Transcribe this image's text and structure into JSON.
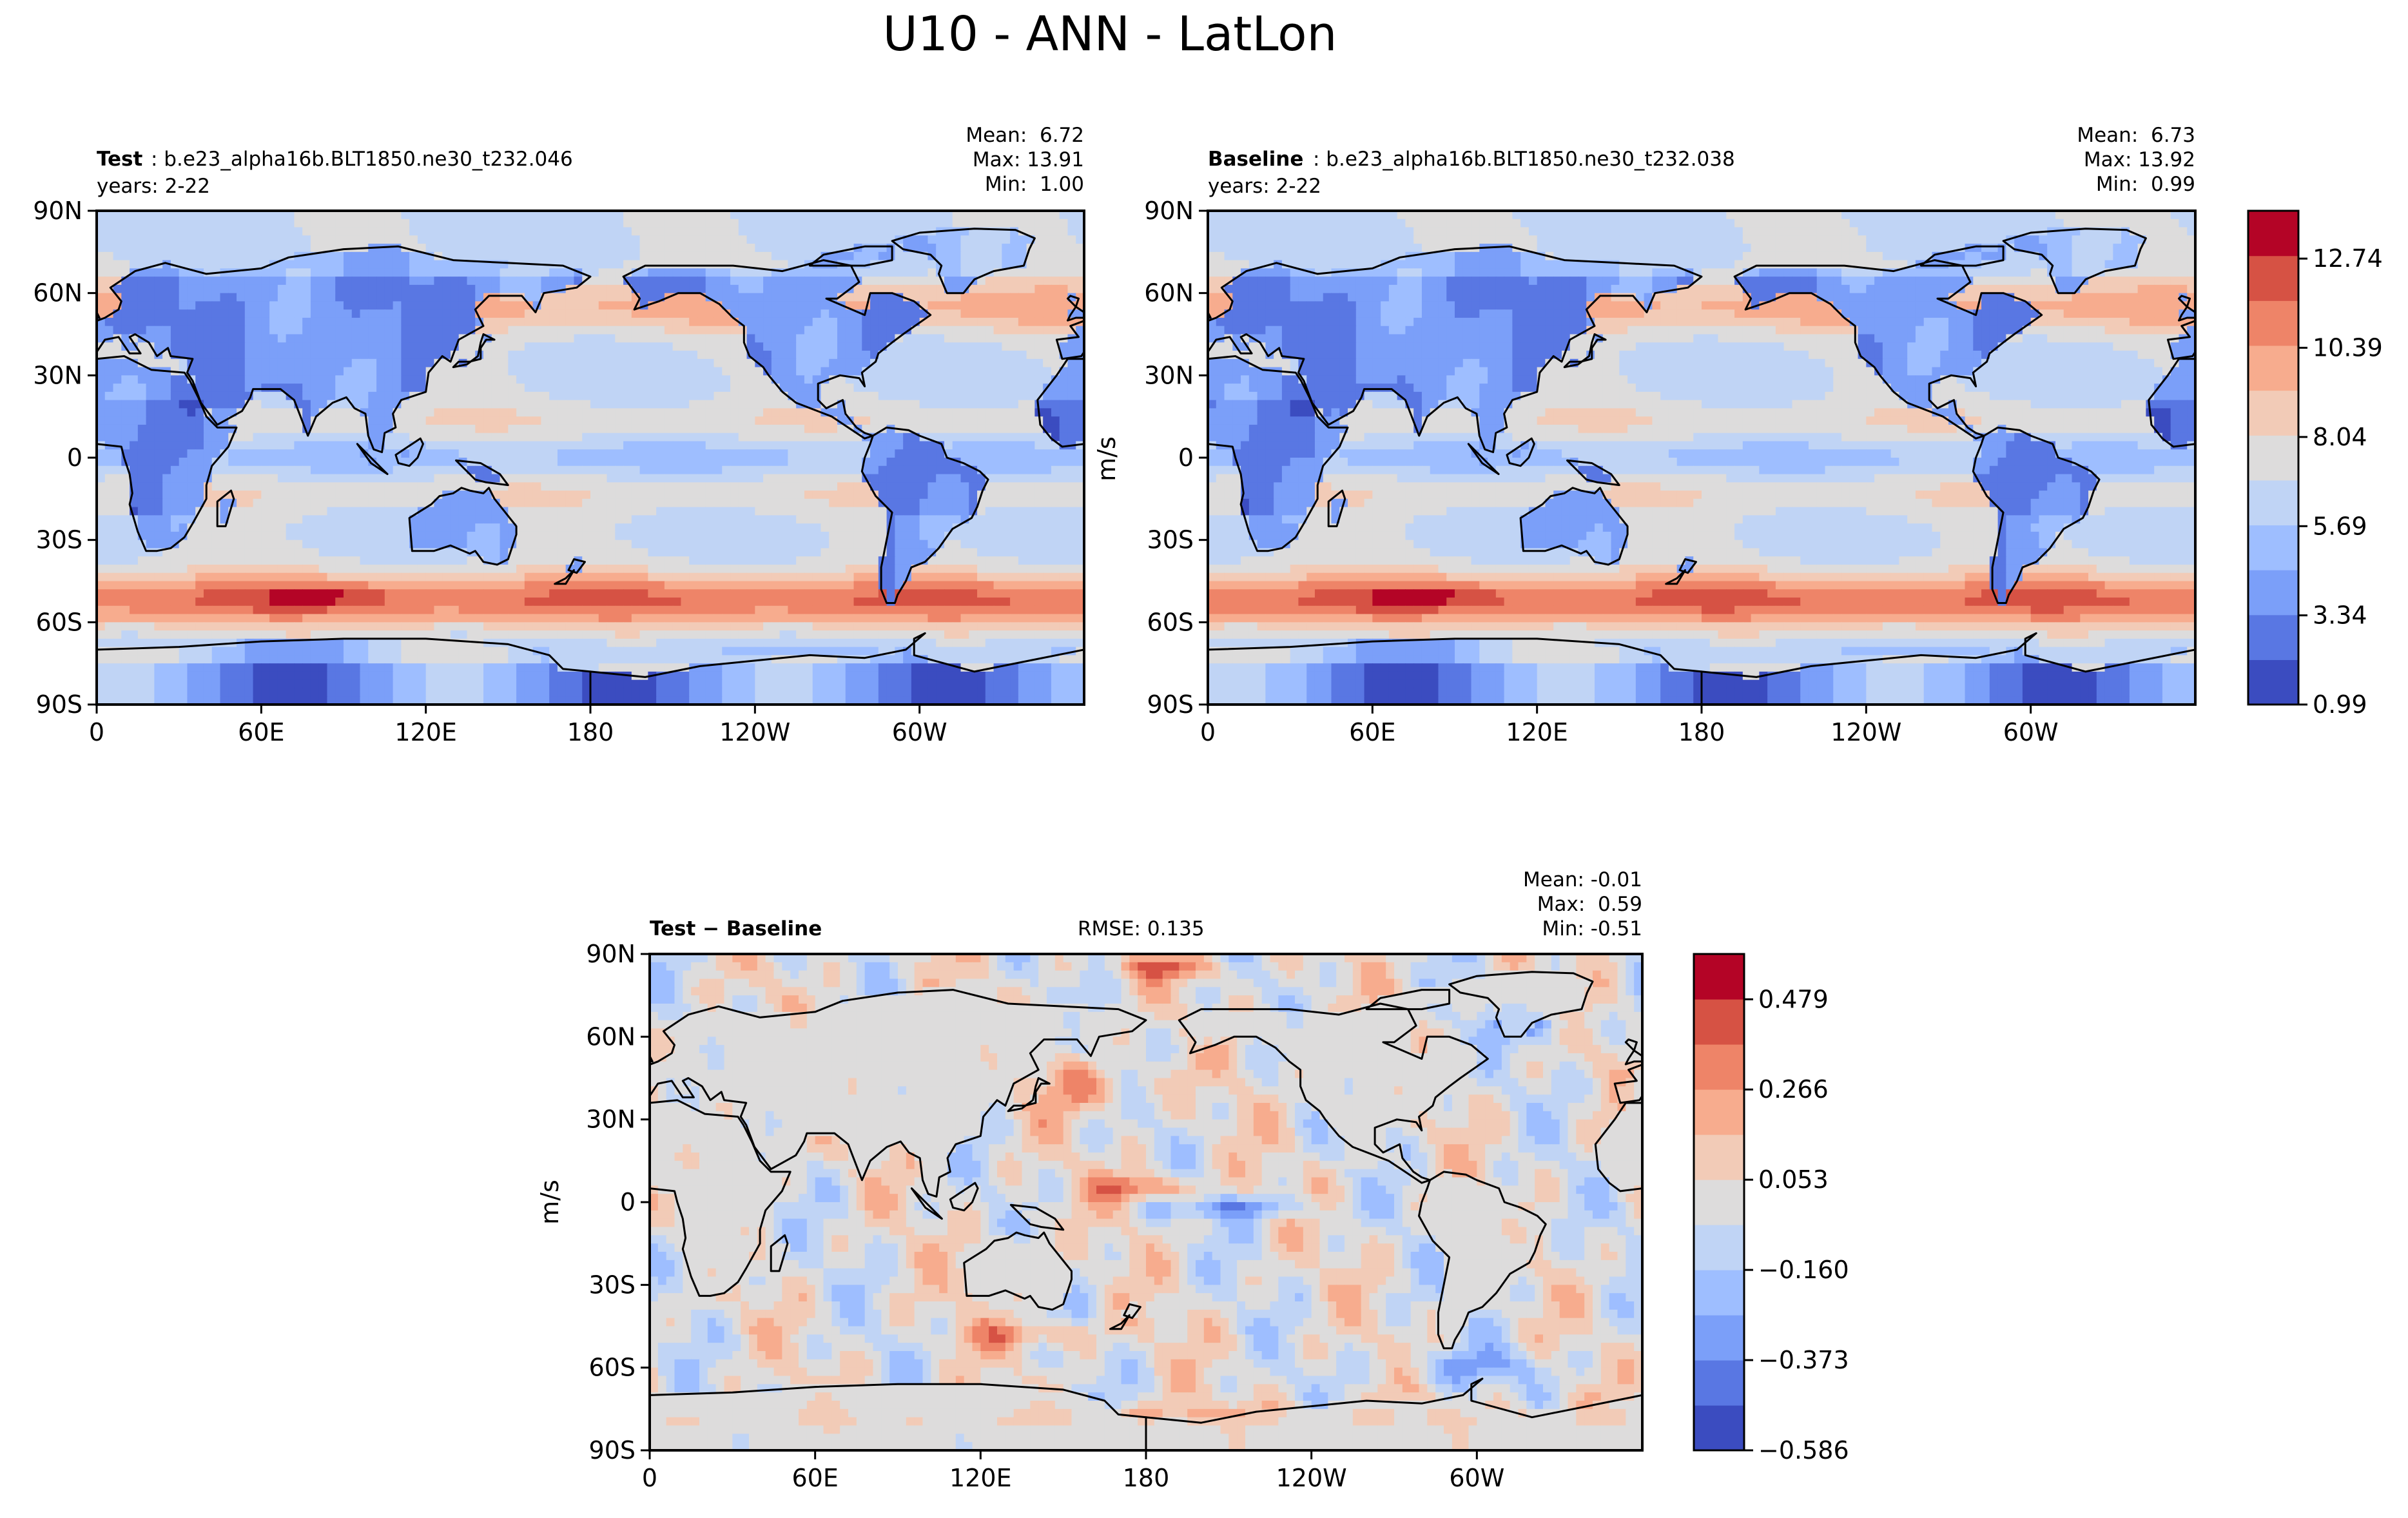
{
  "figure": {
    "title": "U10 - ANN - LatLon"
  },
  "colors": {
    "scale": [
      "#3b4cc0",
      "#5977e3",
      "#7b9ff9",
      "#9ebeff",
      "#c0d4f5",
      "#dddcdc",
      "#f2cbb7",
      "#f7ac8e",
      "#ee8468",
      "#d65244",
      "#b40426"
    ],
    "coast": "#000000",
    "frame": "#000000"
  },
  "chart_data": [
    {
      "type": "heatmap",
      "name": "test",
      "title_bold": "Test",
      "title_rest": ": b.e23_alpha16b.BLT1850.ne30_t232.046",
      "subtitle": "years: 2-22",
      "stats": [
        "Mean:  6.72",
        "Max: 13.91",
        "Min:  1.00"
      ],
      "stat_values": {
        "mean": 6.72,
        "max": 13.91,
        "min": 1.0
      },
      "xticks": [
        "0",
        "60E",
        "120E",
        "180",
        "120W",
        "60W"
      ],
      "yticks": [
        "90N",
        "60N",
        "30N",
        "0",
        "30S",
        "60S",
        "90S"
      ],
      "xlim": [
        0,
        360
      ],
      "ylim": [
        -90,
        90
      ],
      "field": "u10_mean"
    },
    {
      "type": "heatmap",
      "name": "baseline",
      "title_bold": "Baseline",
      "title_rest": ": b.e23_alpha16b.BLT1850.ne30_t232.038",
      "subtitle": "years: 2-22",
      "stats": [
        "Mean:  6.73",
        "Max: 13.92",
        "Min:  0.99"
      ],
      "stat_values": {
        "mean": 6.73,
        "max": 13.92,
        "min": 0.99
      },
      "xticks": [
        "0",
        "60E",
        "120E",
        "180",
        "120W",
        "60W"
      ],
      "yticks": [
        "90N",
        "60N",
        "30N",
        "0",
        "30S",
        "60S",
        "90S"
      ],
      "ylabel": "m/s",
      "xlim": [
        0,
        360
      ],
      "ylim": [
        -90,
        90
      ],
      "field": "u10_mean",
      "colorbar": {
        "min": 0.99,
        "max": 14.0,
        "ticks": [
          0.99,
          3.34,
          5.69,
          8.04,
          10.39,
          12.74
        ],
        "tick_labels": [
          "0.99",
          "3.34",
          "5.69",
          "8.04",
          "10.39",
          "12.74"
        ],
        "levels": 11
      }
    },
    {
      "type": "heatmap",
      "name": "difference",
      "title_bold": "Test − Baseline",
      "rmse": "RMSE: 0.135",
      "stats": [
        "Mean: -0.01",
        "Max:  0.59",
        "Min: -0.51"
      ],
      "stat_values": {
        "mean": -0.01,
        "max": 0.59,
        "min": -0.51
      },
      "xticks": [
        "0",
        "60E",
        "120E",
        "180",
        "120W",
        "60W"
      ],
      "yticks": [
        "90N",
        "60N",
        "30N",
        "0",
        "30S",
        "60S",
        "90S"
      ],
      "ylabel": "m/s",
      "xlim": [
        0,
        360
      ],
      "ylim": [
        -90,
        90
      ],
      "field": "u10_diff",
      "colorbar": {
        "min": -0.586,
        "max": 0.586,
        "ticks": [
          -0.586,
          -0.373,
          -0.16,
          0.053,
          0.266,
          0.479
        ],
        "tick_labels": [
          "−0.586",
          "−0.373",
          "−0.160",
          "0.053",
          "0.266",
          "0.479"
        ],
        "levels": 11
      }
    }
  ],
  "continents": [
    [
      [
        -8,
        36
      ],
      [
        -10,
        43
      ],
      [
        -2,
        44
      ],
      [
        -5,
        48
      ],
      [
        3,
        51
      ],
      [
        8,
        54
      ],
      [
        9,
        57
      ],
      [
        5,
        62
      ],
      [
        14,
        68
      ],
      [
        25,
        71
      ],
      [
        40,
        67
      ],
      [
        60,
        69
      ],
      [
        70,
        73
      ],
      [
        90,
        76
      ],
      [
        110,
        77
      ],
      [
        130,
        72
      ],
      [
        150,
        71
      ],
      [
        170,
        70
      ],
      [
        180,
        66
      ],
      [
        175,
        62
      ],
      [
        163,
        60
      ],
      [
        160,
        53
      ],
      [
        155,
        59
      ],
      [
        143,
        59
      ],
      [
        138,
        54
      ],
      [
        141,
        48
      ],
      [
        132,
        43
      ],
      [
        129,
        35
      ],
      [
        126,
        37
      ],
      [
        121,
        31
      ],
      [
        120,
        24
      ],
      [
        111,
        21
      ],
      [
        108,
        16
      ],
      [
        109,
        11
      ],
      [
        105,
        9
      ],
      [
        104,
        2
      ],
      [
        101,
        3
      ],
      [
        99,
        8
      ],
      [
        98,
        16
      ],
      [
        94,
        18
      ],
      [
        91,
        22
      ],
      [
        86,
        20
      ],
      [
        80,
        15
      ],
      [
        77,
        8
      ],
      [
        72,
        21
      ],
      [
        67,
        25
      ],
      [
        57,
        25
      ],
      [
        56,
        22
      ],
      [
        53,
        17
      ],
      [
        44,
        12
      ],
      [
        38,
        20
      ],
      [
        35,
        28
      ],
      [
        33,
        31
      ],
      [
        35,
        36
      ],
      [
        27,
        37
      ],
      [
        26,
        40
      ],
      [
        22,
        37
      ],
      [
        19,
        42
      ],
      [
        14,
        45
      ],
      [
        12,
        44
      ],
      [
        16,
        38
      ],
      [
        12,
        38
      ],
      [
        8,
        44
      ],
      [
        3,
        43
      ],
      [
        -1,
        37
      ],
      [
        -8,
        36
      ]
    ],
    [
      [
        -17,
        21
      ],
      [
        -16,
        12
      ],
      [
        -12,
        7
      ],
      [
        -8,
        4
      ],
      [
        0,
        5
      ],
      [
        9,
        4
      ],
      [
        10,
        0
      ],
      [
        12,
        -6
      ],
      [
        13,
        -13
      ],
      [
        12,
        -17
      ],
      [
        15,
        -27
      ],
      [
        18,
        -34
      ],
      [
        22,
        -34
      ],
      [
        27,
        -33
      ],
      [
        32,
        -29
      ],
      [
        35,
        -24
      ],
      [
        40,
        -15
      ],
      [
        40,
        -10
      ],
      [
        42,
        -3
      ],
      [
        48,
        4
      ],
      [
        51,
        11
      ],
      [
        44,
        11
      ],
      [
        40,
        15
      ],
      [
        37,
        22
      ],
      [
        34,
        28
      ],
      [
        32,
        31
      ],
      [
        20,
        32
      ],
      [
        10,
        37
      ],
      [
        0,
        36
      ],
      [
        -6,
        36
      ],
      [
        -10,
        30
      ],
      [
        -17,
        21
      ]
    ],
    [
      [
        114,
        -22
      ],
      [
        115,
        -34
      ],
      [
        123,
        -34
      ],
      [
        129,
        -32
      ],
      [
        136,
        -35
      ],
      [
        138,
        -34
      ],
      [
        141,
        -38
      ],
      [
        146,
        -39
      ],
      [
        150,
        -37
      ],
      [
        153,
        -28
      ],
      [
        153,
        -25
      ],
      [
        145,
        -15
      ],
      [
        143,
        -11
      ],
      [
        141,
        -13
      ],
      [
        136,
        -12
      ],
      [
        133,
        -11
      ],
      [
        130,
        -13
      ],
      [
        125,
        -14
      ],
      [
        122,
        -17
      ],
      [
        114,
        -22
      ]
    ],
    [
      [
        -168,
        66
      ],
      [
        -160,
        70
      ],
      [
        -141,
        70
      ],
      [
        -128,
        70
      ],
      [
        -110,
        68
      ],
      [
        -95,
        72
      ],
      [
        -85,
        70
      ],
      [
        -82,
        64
      ],
      [
        -90,
        58
      ],
      [
        -94,
        58
      ],
      [
        -80,
        52
      ],
      [
        -78,
        60
      ],
      [
        -70,
        60
      ],
      [
        -62,
        57
      ],
      [
        -56,
        52
      ],
      [
        -66,
        45
      ],
      [
        -70,
        42
      ],
      [
        -75,
        38
      ],
      [
        -76,
        35
      ],
      [
        -81,
        31
      ],
      [
        -80,
        26
      ],
      [
        -82,
        29
      ],
      [
        -89,
        30
      ],
      [
        -97,
        27
      ],
      [
        -97,
        21
      ],
      [
        -94,
        18
      ],
      [
        -88,
        21
      ],
      [
        -87,
        16
      ],
      [
        -83,
        11
      ],
      [
        -80,
        9
      ],
      [
        -77,
        8
      ],
      [
        -80,
        7
      ],
      [
        -86,
        11
      ],
      [
        -92,
        15
      ],
      [
        -105,
        20
      ],
      [
        -110,
        24
      ],
      [
        -115,
        30
      ],
      [
        -117,
        33
      ],
      [
        -122,
        37
      ],
      [
        -124,
        42
      ],
      [
        -124,
        48
      ],
      [
        -128,
        51
      ],
      [
        -133,
        56
      ],
      [
        -140,
        60
      ],
      [
        -148,
        60
      ],
      [
        -155,
        57
      ],
      [
        -158,
        56
      ],
      [
        -164,
        54
      ],
      [
        -162,
        58
      ],
      [
        -165,
        62
      ],
      [
        -168,
        66
      ]
    ],
    [
      [
        -77,
        8
      ],
      [
        -72,
        11
      ],
      [
        -64,
        10
      ],
      [
        -60,
        8
      ],
      [
        -52,
        5
      ],
      [
        -50,
        0
      ],
      [
        -44,
        -2
      ],
      [
        -38,
        -5
      ],
      [
        -35,
        -8
      ],
      [
        -37,
        -12
      ],
      [
        -39,
        -18
      ],
      [
        -41,
        -22
      ],
      [
        -48,
        -26
      ],
      [
        -53,
        -33
      ],
      [
        -58,
        -38
      ],
      [
        -63,
        -40
      ],
      [
        -65,
        -45
      ],
      [
        -68,
        -50
      ],
      [
        -69,
        -53
      ],
      [
        -72,
        -53
      ],
      [
        -74,
        -48
      ],
      [
        -74,
        -40
      ],
      [
        -72,
        -30
      ],
      [
        -70,
        -20
      ],
      [
        -76,
        -14
      ],
      [
        -81,
        -5
      ],
      [
        -80,
        0
      ],
      [
        -78,
        5
      ],
      [
        -77,
        8
      ]
    ],
    [
      [
        -50,
        60
      ],
      [
        -44,
        60
      ],
      [
        -40,
        65
      ],
      [
        -33,
        68
      ],
      [
        -22,
        70
      ],
      [
        -20,
        76
      ],
      [
        -18,
        80
      ],
      [
        -25,
        83
      ],
      [
        -40,
        83.5
      ],
      [
        -60,
        82
      ],
      [
        -70,
        79
      ],
      [
        -66,
        76
      ],
      [
        -56,
        74
      ],
      [
        -52,
        70
      ],
      [
        -53,
        67
      ],
      [
        -50,
        60
      ]
    ],
    [
      [
        -6,
        50
      ],
      [
        -3,
        51
      ],
      [
        1,
        51
      ],
      [
        0,
        53
      ],
      [
        -3,
        55
      ],
      [
        -6,
        58
      ],
      [
        -5,
        59
      ],
      [
        -2,
        58
      ],
      [
        -3,
        55
      ],
      [
        -5,
        52
      ],
      [
        -6,
        50
      ]
    ],
    [
      [
        130,
        33
      ],
      [
        132,
        35
      ],
      [
        136,
        35
      ],
      [
        140,
        36
      ],
      [
        140,
        40
      ],
      [
        142,
        43
      ],
      [
        145,
        43
      ],
      [
        141,
        45
      ],
      [
        140,
        42
      ],
      [
        139,
        37
      ],
      [
        135,
        34
      ],
      [
        130,
        33
      ]
    ],
    [
      [
        44,
        -25
      ],
      [
        47,
        -25
      ],
      [
        50,
        -15
      ],
      [
        49,
        -12
      ],
      [
        44,
        -16
      ],
      [
        44,
        -25
      ]
    ],
    [
      [
        95,
        5
      ],
      [
        105,
        -5
      ],
      [
        106,
        -6
      ],
      [
        100,
        -2
      ],
      [
        95,
        5
      ]
    ],
    [
      [
        109,
        1
      ],
      [
        118,
        7
      ],
      [
        119,
        5
      ],
      [
        117,
        0
      ],
      [
        114,
        -3
      ],
      [
        110,
        -2
      ],
      [
        109,
        1
      ]
    ],
    [
      [
        131,
        -1
      ],
      [
        140,
        -2
      ],
      [
        147,
        -6
      ],
      [
        150,
        -10
      ],
      [
        142,
        -9
      ],
      [
        138,
        -8
      ],
      [
        131,
        -1
      ]
    ],
    [
      [
        172,
        -41
      ],
      [
        174,
        -37
      ],
      [
        178,
        -38
      ],
      [
        175,
        -42
      ],
      [
        172,
        -41
      ]
    ],
    [
      [
        167,
        -46
      ],
      [
        171,
        -44
      ],
      [
        174,
        -41
      ],
      [
        171,
        -46
      ],
      [
        167,
        -46
      ]
    ],
    [
      [
        -180,
        -78
      ],
      [
        -160,
        -80
      ],
      [
        -140,
        -76
      ],
      [
        -120,
        -74
      ],
      [
        -100,
        -72
      ],
      [
        -80,
        -73
      ],
      [
        -65,
        -70
      ],
      [
        -58,
        -64
      ],
      [
        -62,
        -66
      ],
      [
        -62,
        -72
      ],
      [
        -40,
        -78
      ],
      [
        -20,
        -74
      ],
      [
        0,
        -70
      ],
      [
        30,
        -69
      ],
      [
        60,
        -67
      ],
      [
        90,
        -66
      ],
      [
        120,
        -66
      ],
      [
        150,
        -68
      ],
      [
        165,
        -72
      ],
      [
        170,
        -77
      ],
      [
        180,
        -78
      ],
      [
        180,
        -90
      ],
      [
        -180,
        -90
      ],
      [
        -180,
        -78
      ]
    ],
    [
      [
        -70,
        77
      ],
      [
        -80,
        77
      ],
      [
        -95,
        74
      ],
      [
        -100,
        70
      ],
      [
        -80,
        70
      ],
      [
        -70,
        72
      ],
      [
        -70,
        77
      ]
    ]
  ]
}
